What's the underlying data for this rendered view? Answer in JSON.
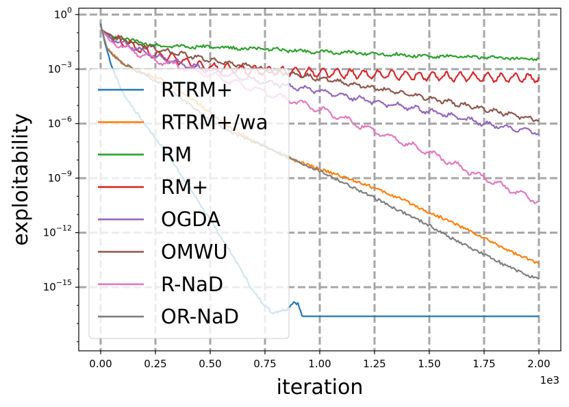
{
  "chart_data": {
    "type": "line",
    "title": "",
    "xlabel": "iteration",
    "ylabel": "exploitability",
    "x_scale_note": "1e3",
    "y_scale": "log",
    "xlim": [
      -0.1,
      2.1
    ],
    "ylim_log10": [
      -18.5,
      0.35
    ],
    "xticks": [
      0.0,
      0.25,
      0.5,
      0.75,
      1.0,
      1.25,
      1.5,
      1.75,
      2.0
    ],
    "xtick_labels": [
      "0.00",
      "0.25",
      "0.50",
      "0.75",
      "1.00",
      "1.25",
      "1.50",
      "1.75",
      "2.00"
    ],
    "yticks_log10": [
      0,
      -3,
      -6,
      -9,
      -12,
      -15
    ],
    "ytick_labels": [
      {
        "base": "10",
        "exp": "0"
      },
      {
        "base": "10",
        "exp": "−3"
      },
      {
        "base": "10",
        "exp": "−6"
      },
      {
        "base": "10",
        "exp": "−9"
      },
      {
        "base": "10",
        "exp": "−12"
      },
      {
        "base": "10",
        "exp": "−15"
      }
    ],
    "grid": true,
    "legend_position": "left",
    "series": [
      {
        "name": "RTRM+",
        "color": "#1f77b4",
        "x": [
          0.0,
          0.02,
          0.05,
          0.1,
          0.2,
          0.3,
          0.4,
          0.5,
          0.6,
          0.7,
          0.78,
          0.85,
          0.88,
          0.9,
          0.92,
          1.0,
          1.5,
          2.0
        ],
        "log10_y": [
          -0.5,
          -1.6,
          -2.8,
          -4.3,
          -6.0,
          -7.6,
          -9.4,
          -11.3,
          -13.2,
          -15.3,
          -16.4,
          -16.2,
          -15.8,
          -15.9,
          -16.6,
          -16.6,
          -16.6,
          -16.6
        ]
      },
      {
        "name": "RTRM+/wa",
        "color": "#ff7f0e",
        "x": [
          0.0,
          0.03,
          0.1,
          0.2,
          0.3,
          0.4,
          0.5,
          0.6,
          0.7,
          0.8,
          0.9,
          1.0,
          1.1,
          1.2,
          1.3,
          1.4,
          1.5,
          1.6,
          1.7,
          1.8,
          1.9,
          2.0
        ],
        "log10_y": [
          -0.6,
          -1.9,
          -2.7,
          -3.2,
          -3.7,
          -4.5,
          -5.4,
          -6.3,
          -7.0,
          -7.6,
          -8.1,
          -8.5,
          -8.9,
          -9.3,
          -9.8,
          -10.3,
          -10.9,
          -11.4,
          -12.0,
          -12.6,
          -13.2,
          -13.7
        ]
      },
      {
        "name": "RM",
        "color": "#2ca02c",
        "x": [
          0.0,
          0.05,
          0.25,
          0.5,
          0.75,
          1.0,
          1.25,
          1.5,
          1.75,
          2.0
        ],
        "log10_y": [
          -0.8,
          -1.2,
          -1.7,
          -1.8,
          -1.9,
          -2.05,
          -2.15,
          -2.3,
          -2.35,
          -2.45
        ]
      },
      {
        "name": "RM+",
        "color": "#d62728",
        "x": [
          0.0,
          0.05,
          0.25,
          0.5,
          0.75,
          1.0,
          1.25,
          1.5,
          1.75,
          2.0
        ],
        "log10_y": [
          -0.8,
          -1.3,
          -2.2,
          -2.9,
          -3.1,
          -3.2,
          -3.3,
          -3.4,
          -3.45,
          -3.5
        ]
      },
      {
        "name": "OGDA",
        "color": "#9467bd",
        "x": [
          0.0,
          0.05,
          0.25,
          0.5,
          0.75,
          1.0,
          1.25,
          1.5,
          1.75,
          2.0
        ],
        "log10_y": [
          -0.8,
          -1.3,
          -2.3,
          -3.1,
          -3.7,
          -4.2,
          -4.8,
          -5.3,
          -6.0,
          -6.5
        ]
      },
      {
        "name": "OMWU",
        "color": "#8c564b",
        "x": [
          0.0,
          0.05,
          0.25,
          0.5,
          0.75,
          1.0,
          1.25,
          1.5,
          1.75,
          2.0
        ],
        "log10_y": [
          -0.8,
          -1.2,
          -1.9,
          -2.5,
          -3.0,
          -3.5,
          -4.05,
          -4.6,
          -5.2,
          -5.8
        ]
      },
      {
        "name": "R-NaD",
        "color": "#e377c2",
        "x": [
          0.0,
          0.05,
          0.25,
          0.5,
          0.75,
          1.0,
          1.25,
          1.5,
          1.75,
          2.0
        ],
        "log10_y": [
          -0.8,
          -1.5,
          -2.5,
          -3.3,
          -4.3,
          -5.2,
          -6.4,
          -7.6,
          -9.0,
          -10.3
        ]
      },
      {
        "name": "OR-NaD",
        "color": "#7f7f7f",
        "x": [
          0.0,
          0.03,
          0.1,
          0.2,
          0.3,
          0.4,
          0.5,
          0.6,
          0.7,
          0.8,
          0.9,
          1.0,
          1.1,
          1.2,
          1.3,
          1.4,
          1.5,
          1.6,
          1.7,
          1.8,
          1.9,
          2.0
        ],
        "log10_y": [
          -0.6,
          -1.9,
          -2.7,
          -3.3,
          -4.0,
          -4.9,
          -5.8,
          -6.5,
          -7.0,
          -7.5,
          -8.1,
          -8.6,
          -9.2,
          -9.8,
          -10.4,
          -11.0,
          -11.6,
          -12.3,
          -12.9,
          -13.5,
          -14.1,
          -14.6
        ]
      }
    ]
  }
}
